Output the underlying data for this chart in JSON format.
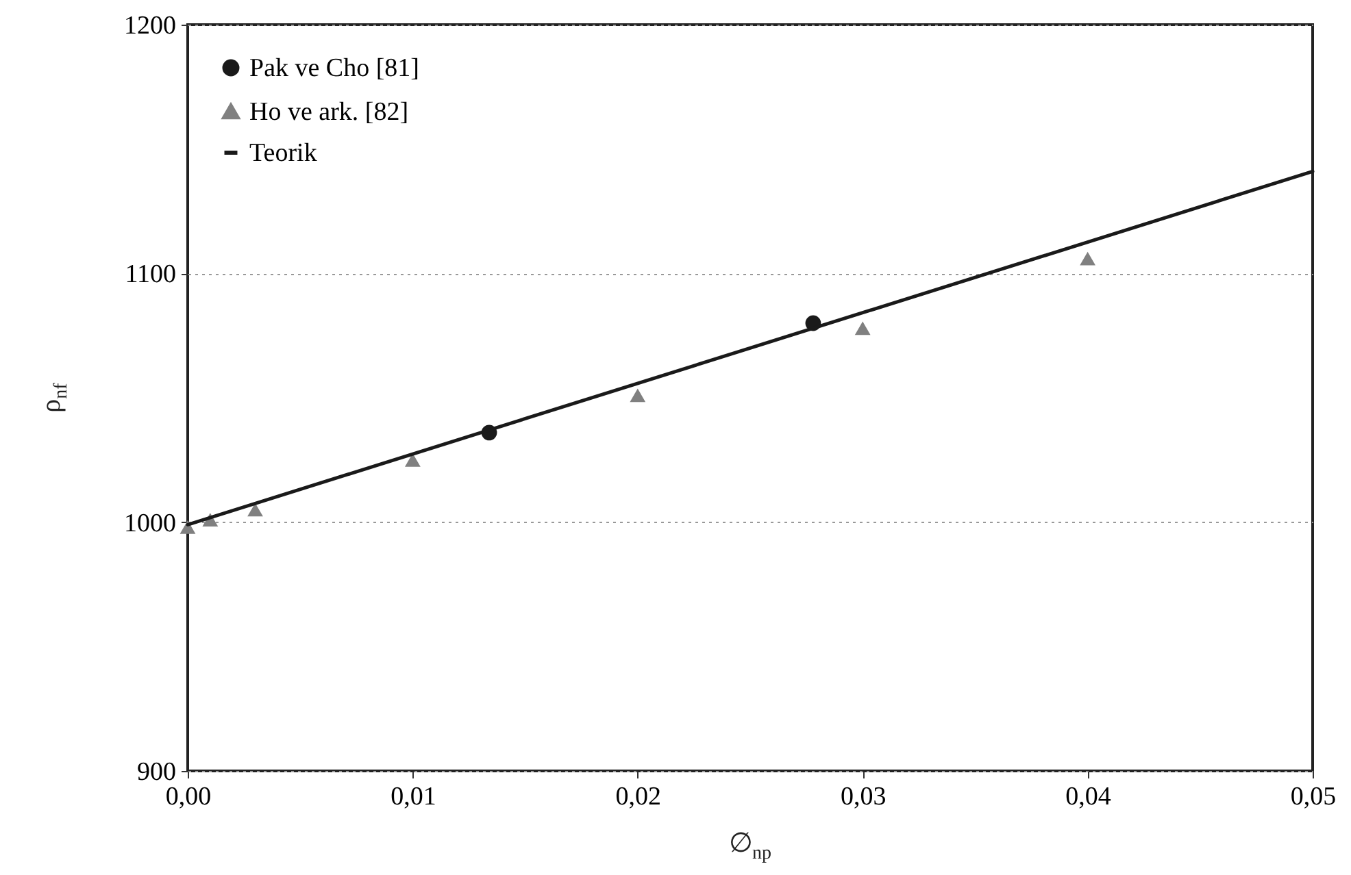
{
  "chart_data": {
    "type": "scatter",
    "xlabel": "∅$_{np}$",
    "ylabel": "ρ$_{nf}$",
    "xlim": [
      0,
      0.05
    ],
    "xticks": [
      {
        "value": 0,
        "label": "0,00"
      },
      {
        "value": 0.01,
        "label": "0,01"
      },
      {
        "value": 0.02,
        "label": "0,02"
      },
      {
        "value": 0.03,
        "label": "0,03"
      },
      {
        "value": 0.04,
        "label": "0,04"
      },
      {
        "value": 0.05,
        "label": "0,05"
      }
    ],
    "ylim": [
      900,
      1200
    ],
    "yticks": [
      900,
      1000,
      1100,
      1200
    ],
    "grid": "y",
    "legend": "top left",
    "series": [
      {
        "name": "Pak ve Cho [81]",
        "marker": "circle",
        "color": "#1a1a1a",
        "x": [
          0.0134,
          0.0278
        ],
        "values": [
          1036,
          1080
        ]
      },
      {
        "name": "Ho ve ark. [82]",
        "marker": "triangle",
        "color": "#808080",
        "x": [
          0,
          0.001,
          0.003,
          0.01,
          0.02,
          0.03,
          0.04
        ],
        "values": [
          998,
          1001,
          1005,
          1025,
          1051,
          1078,
          1106
        ]
      },
      {
        "name": "Teorik",
        "type": "line",
        "color": "#1a1a1a",
        "line_style": "solid",
        "x": [
          0,
          0.05
        ],
        "values": [
          999,
          1141
        ]
      }
    ]
  }
}
